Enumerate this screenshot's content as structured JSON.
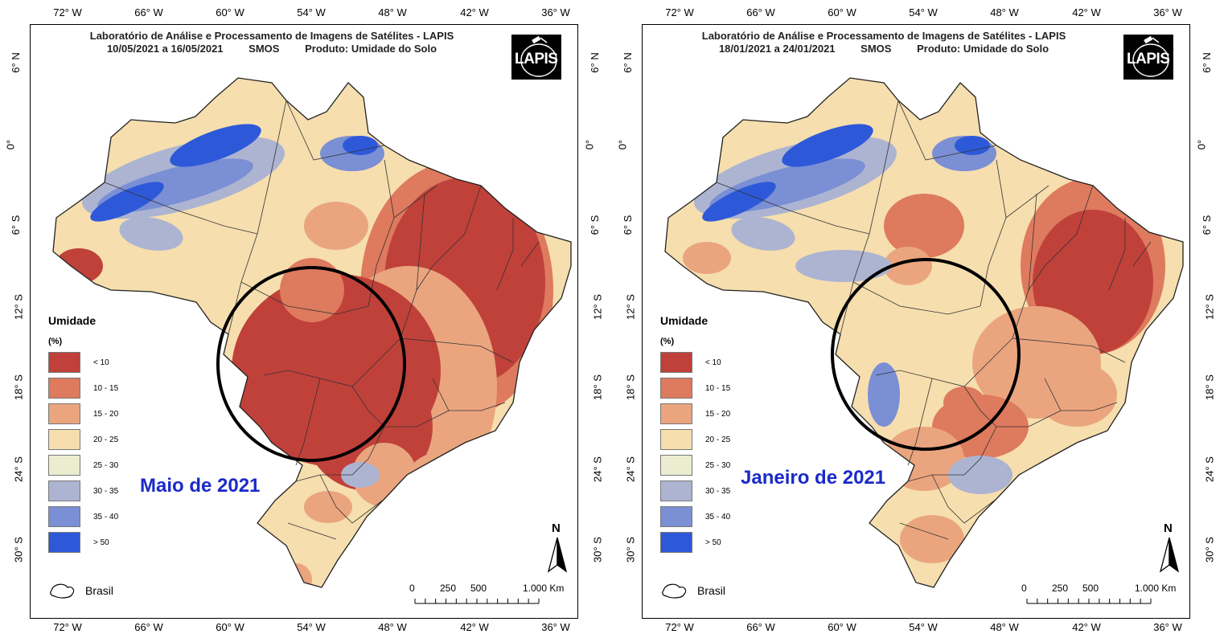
{
  "colors": {
    "lt10": "#c0413a",
    "c10_15": "#de7a5e",
    "c15_20": "#eaa57f",
    "c20_25": "#f6deae",
    "c25_30": "#ececd0",
    "c30_35": "#acb4d2",
    "c35_40": "#7a8fd4",
    "gt50": "#2d59d9",
    "month_label": "#1a2ac8"
  },
  "axis": {
    "top": [
      "72° W",
      "66° W",
      "60° W",
      "54° W",
      "48° W",
      "42° W",
      "36° W"
    ],
    "bottom": [
      "72° W",
      "66° W",
      "60° W",
      "54° W",
      "48° W",
      "42° W",
      "36° W"
    ],
    "left": [
      "6° N",
      "0°",
      "6° S",
      "12° S",
      "18° S",
      "24° S",
      "30° S"
    ],
    "right": [
      "6° N",
      "0°",
      "6° S",
      "12° S",
      "18° S",
      "24° S",
      "30° S"
    ]
  },
  "legend": {
    "title": "Umidade",
    "unit": "(%)",
    "classes": [
      {
        "label": "< 10",
        "color_key": "lt10"
      },
      {
        "label": "10 - 15",
        "color_key": "c10_15"
      },
      {
        "label": "15 - 20",
        "color_key": "c15_20"
      },
      {
        "label": "20 - 25",
        "color_key": "c20_25"
      },
      {
        "label": "25 - 30",
        "color_key": "c25_30"
      },
      {
        "label": "30 - 35",
        "color_key": "c30_35"
      },
      {
        "label": "35 - 40",
        "color_key": "c35_40"
      },
      {
        "label": "> 50",
        "color_key": "gt50"
      }
    ],
    "boundary_label": "Brasil"
  },
  "scale_bar": {
    "labels": [
      "0",
      "250",
      "500",
      "1.000 Km"
    ]
  },
  "north_label": "N",
  "logo_text": "LAPIS",
  "panels": [
    {
      "title": "Laboratório de Análise e Processamento de Imagens de Satélites - LAPIS",
      "period": "10/05/2021  a  16/05/2021",
      "sensor": "SMOS",
      "product": "Produto: Umidade do Solo",
      "month_label": "Maio de 2021",
      "dominant": "dry"
    },
    {
      "title": "Laboratório de Análise e Processamento de Imagens de Satélites - LAPIS",
      "period": "18/01/2021  a  24/01/2021",
      "sensor": "SMOS",
      "product": "Produto: Umidade do Solo",
      "month_label": "Janeiro de 2021",
      "dominant": "moist"
    }
  ]
}
